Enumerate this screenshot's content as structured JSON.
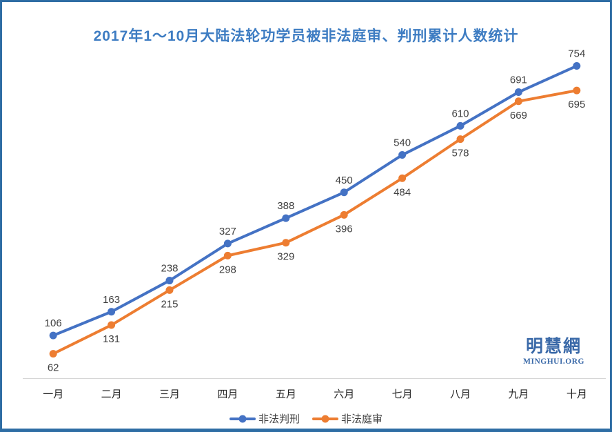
{
  "chart_data": {
    "type": "line",
    "title": "2017年1～10月大陆法轮功学员被非法庭审、判刑累计人数统计",
    "categories": [
      "一月",
      "二月",
      "三月",
      "四月",
      "五月",
      "六月",
      "七月",
      "八月",
      "九月",
      "十月"
    ],
    "series": [
      {
        "name": "非法判刑",
        "color": "#4472C4",
        "values": [
          106,
          163,
          238,
          327,
          388,
          450,
          540,
          610,
          691,
          754
        ],
        "label_position": "above"
      },
      {
        "name": "非法庭审",
        "color": "#ED7D31",
        "values": [
          62,
          131,
          215,
          298,
          329,
          396,
          484,
          578,
          669,
          695
        ],
        "label_position": "below"
      }
    ],
    "xlabel": "",
    "ylabel": "",
    "ylim": [
      0,
      800
    ],
    "grid": false,
    "legend_position": "bottom",
    "data_labels": true
  },
  "watermark": {
    "cn": "明慧網",
    "en": "MINGHUI.ORG"
  },
  "colors": {
    "frame_border": "#2E6DA4",
    "title_text": "#3D7CC2",
    "axis_line": "#D6D6D6",
    "data_label_text": "#404040",
    "x_label_text": "#262626",
    "watermark_text": "#3A69A8"
  }
}
